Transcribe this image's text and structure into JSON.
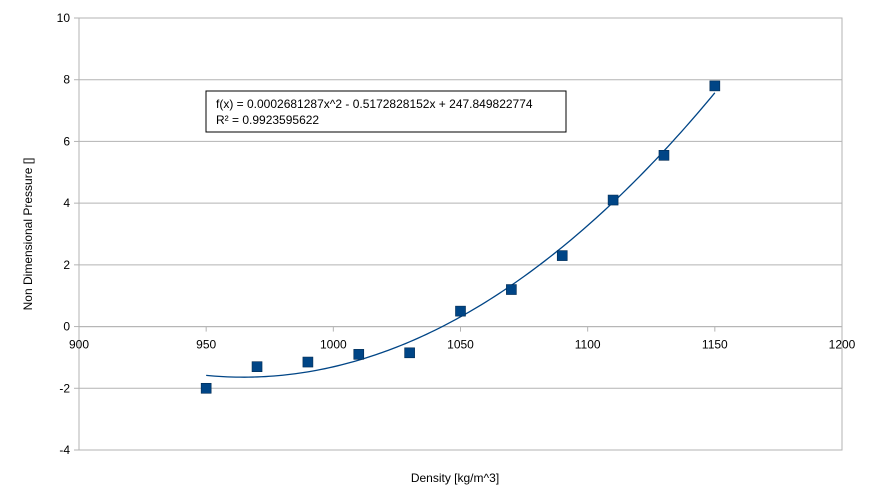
{
  "chart_data": {
    "type": "scatter",
    "xlabel": "Density [kg/m^3]",
    "ylabel": "Non Dimensional Pressure []",
    "xlim": [
      900,
      1200
    ],
    "ylim": [
      -4,
      10
    ],
    "x_ticks": [
      "900",
      "950",
      "1000",
      "1050",
      "1100",
      "1150",
      "1200"
    ],
    "y_ticks": [
      "-4",
      "-2",
      "0",
      "2",
      "4",
      "6",
      "8",
      "10"
    ],
    "grid": "horizontal",
    "legend": "none",
    "series": [
      {
        "marker": "square",
        "color": "#004586",
        "x": [
          950,
          970,
          990,
          1010,
          1030,
          1050,
          1070,
          1090,
          1110,
          1130,
          1150
        ],
        "y": [
          -2.0,
          -1.3,
          -1.15,
          -0.9,
          -0.85,
          0.5,
          1.2,
          2.3,
          4.1,
          5.55,
          7.8
        ]
      }
    ],
    "trendline": {
      "type": "polynomial",
      "color": "#004586",
      "coefficients": [
        0.0002681287,
        -0.5172828152,
        247.849822774
      ],
      "x_range": [
        950,
        1150
      ],
      "equation": "f(x) = 0.0002681287x^2 - 0.5172828152x + 247.849822774",
      "r_squared": "R² = 0.9923595622"
    }
  }
}
